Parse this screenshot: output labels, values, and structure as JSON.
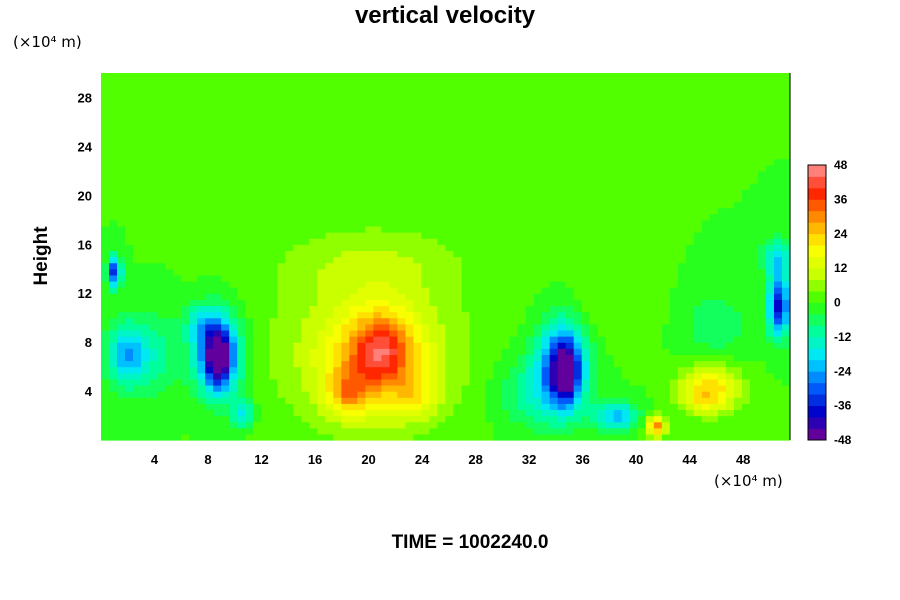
{
  "chart_data": {
    "type": "heatmap",
    "title": "vertical velocity",
    "ylabel": "Height",
    "x_unit": "(×10⁴ m)",
    "y_unit": "(×10⁴ m)",
    "caption": "TIME = 1002240.0",
    "xlim": [
      0,
      51.5
    ],
    "ylim": [
      0,
      30
    ],
    "x_ticks": [
      4,
      8,
      12,
      16,
      20,
      24,
      28,
      32,
      36,
      40,
      44,
      48
    ],
    "y_ticks": [
      4,
      8,
      12,
      16,
      20,
      24,
      28
    ],
    "colorbar": {
      "range": [
        -48,
        48
      ],
      "step": 4,
      "tick_labels": [
        48,
        36,
        24,
        12,
        0,
        -12,
        -24,
        -36,
        -48
      ],
      "colormap": [
        "#7b0090",
        "#0000c8",
        "#0066ff",
        "#00e6ff",
        "#00ff96",
        "#33ff00",
        "#c8ff00",
        "#ffff00",
        "#ff9900",
        "#ff2200",
        "#ff9999"
      ]
    },
    "features": [
      {
        "x": 2,
        "y": 7,
        "sx": 1.6,
        "sy": 2.6,
        "w": -24
      },
      {
        "x": 1,
        "y": 13.8,
        "sx": 0.5,
        "sy": 1.3,
        "w": -34
      },
      {
        "x": 4.5,
        "y": 7,
        "sx": 1.6,
        "sy": 3.5,
        "w": -8
      },
      {
        "x": 8.7,
        "y": 7,
        "sx": 1.7,
        "sy": 3.2,
        "w": -38
      },
      {
        "x": 8.8,
        "y": 6.8,
        "sx": 0.9,
        "sy": 2.5,
        "w": -22
      },
      {
        "x": 7.4,
        "y": 9.5,
        "sx": 1.1,
        "sy": 1.6,
        "w": -12
      },
      {
        "x": 10.5,
        "y": 2.2,
        "sx": 0.8,
        "sy": 1.2,
        "w": -18
      },
      {
        "x": 20,
        "y": 7.5,
        "sx": 7.5,
        "sy": 7,
        "w": 10
      },
      {
        "x": 20.5,
        "y": 6.5,
        "sx": 4,
        "sy": 4,
        "w": 18
      },
      {
        "x": 21,
        "y": 7.5,
        "sx": 2.2,
        "sy": 3,
        "w": 18
      },
      {
        "x": 18.4,
        "y": 3.8,
        "sx": 1.6,
        "sy": 1.8,
        "w": 16
      },
      {
        "x": 23.5,
        "y": 3.5,
        "sx": 1.6,
        "sy": 1.8,
        "w": 10
      },
      {
        "x": 20.3,
        "y": 14.5,
        "sx": 7,
        "sy": 3,
        "w": 6
      },
      {
        "x": 32,
        "y": 4,
        "sx": 2.5,
        "sy": 3,
        "w": -10
      },
      {
        "x": 34.5,
        "y": 6,
        "sx": 1.8,
        "sy": 3.5,
        "w": -38
      },
      {
        "x": 34.8,
        "y": 5.5,
        "sx": 0.9,
        "sy": 2.6,
        "w": -20
      },
      {
        "x": 38.5,
        "y": 2,
        "sx": 1.6,
        "sy": 1.2,
        "w": -22
      },
      {
        "x": 41.5,
        "y": 1.2,
        "sx": 0.7,
        "sy": 0.9,
        "w": 30
      },
      {
        "x": 45.5,
        "y": 4.2,
        "sx": 2.2,
        "sy": 1.8,
        "w": 24
      },
      {
        "x": 45,
        "y": 3,
        "sx": 1.3,
        "sy": 0.8,
        "w": 6
      },
      {
        "x": 46,
        "y": 9.5,
        "sx": 2.2,
        "sy": 2.5,
        "w": -8
      },
      {
        "x": 50.7,
        "y": 11,
        "sx": 0.8,
        "sy": 2.5,
        "w": -38
      },
      {
        "x": 50.5,
        "y": 15,
        "sx": 1,
        "sy": 1.5,
        "w": -18
      },
      {
        "x": 38,
        "y": 11,
        "sx": 3,
        "sy": 3,
        "w": 4
      }
    ]
  }
}
